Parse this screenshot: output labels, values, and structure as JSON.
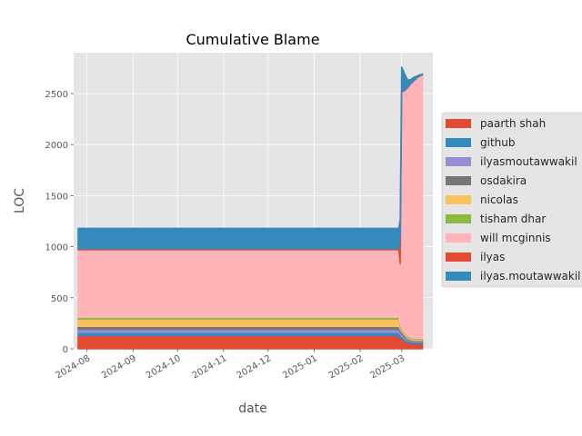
{
  "chart_data": {
    "type": "area",
    "stacked": true,
    "title": "Cumulative Blame",
    "xlabel": "date",
    "ylabel": "LOC",
    "ylim": [
      0,
      2900
    ],
    "xlim": [
      "2024-07-23",
      "2025-03-22"
    ],
    "x_ticks": [
      {
        "date": "2024-08-01",
        "label": "2024-08"
      },
      {
        "date": "2024-09-01",
        "label": "2024-09"
      },
      {
        "date": "2024-10-01",
        "label": "2024-10"
      },
      {
        "date": "2024-11-01",
        "label": "2024-11"
      },
      {
        "date": "2024-12-01",
        "label": "2024-12"
      },
      {
        "date": "2025-01-01",
        "label": "2025-01"
      },
      {
        "date": "2025-02-01",
        "label": "2025-02"
      },
      {
        "date": "2025-03-01",
        "label": "2025-03"
      }
    ],
    "y_ticks": [
      0,
      500,
      1000,
      1500,
      2000,
      2500
    ],
    "grid": true,
    "legend_position": "right",
    "x": [
      "2024-07-26",
      "2025-02-27",
      "2025-02-28",
      "2025-03-01",
      "2025-03-02",
      "2025-03-03",
      "2025-03-05",
      "2025-03-07",
      "2025-03-09",
      "2025-03-12",
      "2025-03-15"
    ],
    "series": [
      {
        "name": "paarth shah",
        "color": "#E24A33",
        "values": [
          130,
          130,
          110,
          95,
          85,
          75,
          60,
          55,
          50,
          50,
          50
        ]
      },
      {
        "name": "github",
        "color": "#348ABD",
        "values": [
          30,
          30,
          28,
          26,
          24,
          22,
          20,
          18,
          17,
          17,
          17
        ]
      },
      {
        "name": "ilyasmoutawwakil",
        "color": "#988ED5",
        "values": [
          30,
          30,
          28,
          25,
          22,
          18,
          12,
          10,
          9,
          9,
          9
        ]
      },
      {
        "name": "osdakira",
        "color": "#777777",
        "values": [
          30,
          30,
          27,
          24,
          21,
          17,
          12,
          9,
          8,
          8,
          8
        ]
      },
      {
        "name": "nicolas",
        "color": "#FBC15E",
        "values": [
          70,
          70,
          20,
          18,
          16,
          14,
          12,
          11,
          10,
          10,
          10
        ]
      },
      {
        "name": "tisham dhar",
        "color": "#8EBA42",
        "values": [
          20,
          20,
          18,
          16,
          14,
          12,
          10,
          9,
          8,
          8,
          8
        ]
      },
      {
        "name": "will mcginnis",
        "color": "#FFB5B8",
        "values": [
          660,
          660,
          600,
          2310,
          2340,
          2370,
          2430,
          2480,
          2520,
          2560,
          2580
        ]
      },
      {
        "name": "ilyas",
        "color": "#E24A33",
        "values": [
          10,
          10,
          300,
          5,
          5,
          5,
          5,
          5,
          5,
          5,
          5
        ]
      },
      {
        "name": "ilyas.moutawwakil",
        "color": "#348ABD",
        "values": [
          200,
          200,
          140,
          240,
          200,
          160,
          70,
          40,
          30,
          10,
          5
        ]
      }
    ]
  }
}
